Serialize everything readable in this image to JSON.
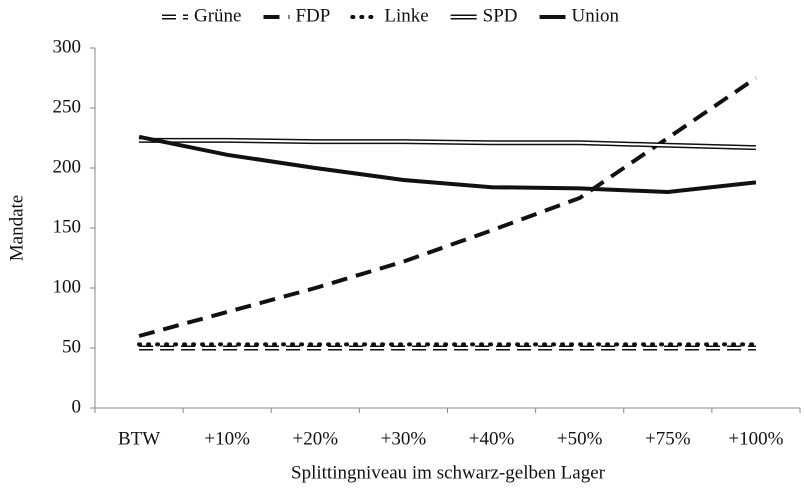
{
  "chart_data": {
    "type": "line",
    "y_label": "Mandate",
    "x_label": "Splittingniveau im schwarz-gelben Lager",
    "categories": [
      "BTW",
      "+10%",
      "+20%",
      "+30%",
      "+40%",
      "+50%",
      "+75%",
      "+100%"
    ],
    "series": [
      {
        "name": "Grüne",
        "color": "#111111",
        "style": "hollow-dash",
        "values": [
          50,
          50,
          50,
          50,
          50,
          50,
          50,
          50
        ]
      },
      {
        "name": "FDP",
        "color": "#111111",
        "style": "dash",
        "values": [
          60,
          80,
          100,
          122,
          148,
          175,
          225,
          275
        ]
      },
      {
        "name": "Linke",
        "color": "#111111",
        "style": "dot",
        "values": [
          53,
          53,
          53,
          53,
          53,
          53,
          53,
          53
        ]
      },
      {
        "name": "SPD",
        "color": "#111111",
        "style": "hollow",
        "values": [
          223,
          223,
          222,
          222,
          221,
          221,
          219,
          217
        ]
      },
      {
        "name": "Union",
        "color": "#111111",
        "style": "solid",
        "values": [
          226,
          211,
          200,
          190,
          184,
          183,
          180,
          188
        ]
      }
    ],
    "ylim": [
      0,
      300
    ],
    "yticks": [
      0,
      50,
      100,
      150,
      200,
      250,
      300
    ],
    "legend": "top",
    "grid": false
  }
}
